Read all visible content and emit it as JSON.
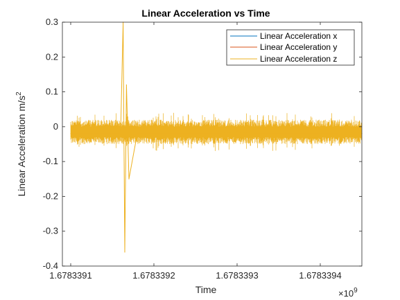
{
  "chart_data": {
    "type": "line",
    "title": "Linear Acceleration vs Time",
    "xlabel": "Time",
    "ylabel": "Linear Acceleration m/s",
    "ylabel_superscript": "2",
    "x_exponent_base": "×10",
    "x_exponent_power": "9",
    "xlim": [
      1.67833909,
      1.67833945
    ],
    "ylim": [
      -0.4,
      0.3
    ],
    "x_ticks": [
      1.6783391,
      1.6783392,
      1.6783393,
      1.6783394
    ],
    "x_tick_labels": [
      "1.6783391",
      "1.6783392",
      "1.6783393",
      "1.6783394"
    ],
    "y_ticks": [
      -0.4,
      -0.3,
      -0.2,
      -0.1,
      0,
      0.1,
      0.2,
      0.3
    ],
    "y_tick_labels": [
      "-0.4",
      "-0.3",
      "-0.2",
      "-0.1",
      "0",
      "0.1",
      "0.2",
      "0.3"
    ],
    "legend_position": "top-right",
    "grid": false,
    "series": [
      {
        "name": "Linear Acceleration x",
        "color": "#0072BD",
        "x": [],
        "y": []
      },
      {
        "name": "Linear Acceleration y",
        "color": "#D95319",
        "x": [],
        "y": []
      },
      {
        "name": "Linear Acceleration z",
        "color": "#EDB120",
        "x": [
          1.6783391,
          1.67833912,
          1.67833914,
          1.67833916,
          1.678339163,
          1.678339165,
          1.678339167,
          1.67833917,
          1.67833918,
          1.6783392,
          1.67833922,
          1.67833924,
          1.67833926,
          1.67833928,
          1.6783393,
          1.67833932,
          1.67833934,
          1.67833936,
          1.67833938,
          1.6783394,
          1.67833942,
          1.67833944,
          1.67833945
        ],
        "y": [
          -0.02,
          -0.02,
          -0.02,
          -0.02,
          0.3,
          -0.36,
          0.12,
          -0.15,
          -0.02,
          -0.02,
          -0.02,
          -0.02,
          -0.02,
          -0.02,
          -0.015,
          -0.02,
          -0.02,
          -0.02,
          -0.02,
          -0.02,
          -0.02,
          -0.015,
          -0.02
        ],
        "noise_band": [
          -0.05,
          0.02
        ]
      }
    ]
  }
}
